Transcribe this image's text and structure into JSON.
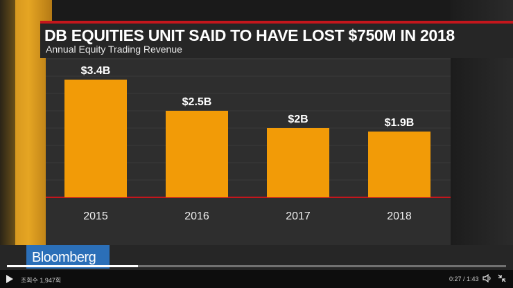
{
  "chart_data": {
    "type": "bar",
    "title": "DB EQUITIES UNIT SAID TO HAVE LOST $750M IN 2018",
    "subtitle": "Annual Equity Trading Revenue",
    "categories": [
      "2015",
      "2016",
      "2017",
      "2018"
    ],
    "values": [
      3.4,
      2.5,
      2.0,
      1.9
    ],
    "data_labels": [
      "$3.4B",
      "$2.5B",
      "$2B",
      "$1.9B"
    ],
    "ylim": [
      0,
      4
    ],
    "grid": true,
    "bar_color": "#f29b07"
  },
  "brand": {
    "label": "Bloomberg",
    "color": "#2b6fb8"
  },
  "player": {
    "views_label": "조회수 1,947회",
    "time_label": "0:27 / 1:43",
    "progress": 0.262,
    "play_icon": "play-icon",
    "volume_icon": "volume-icon",
    "fullscreen_icon": "exit-fullscreen-icon"
  }
}
